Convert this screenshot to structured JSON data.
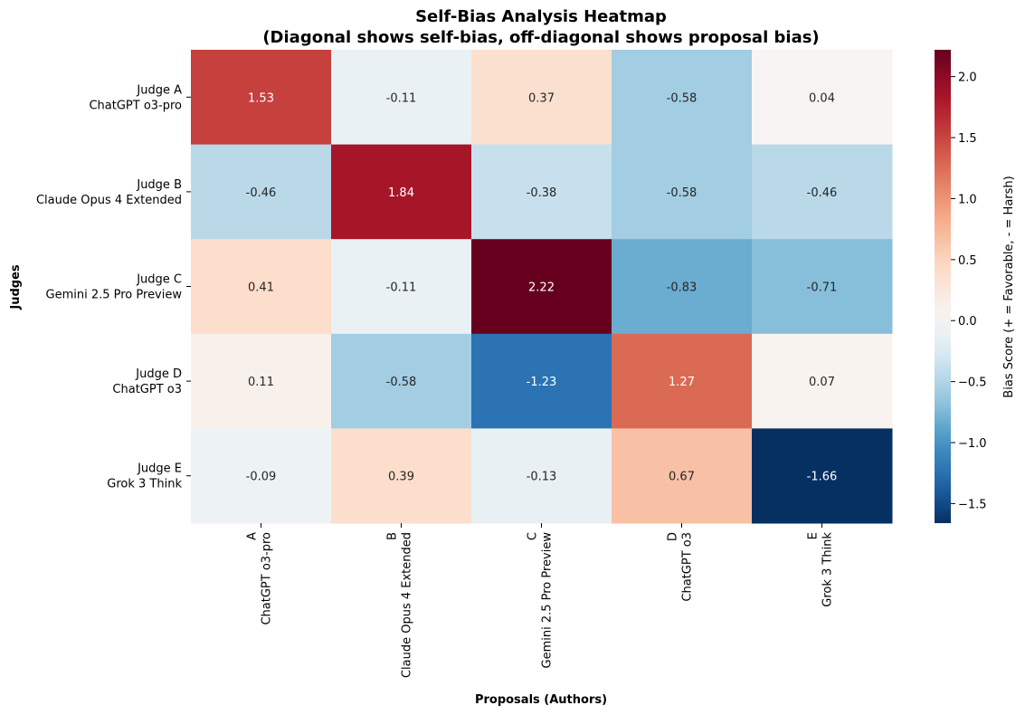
{
  "chart_data": {
    "type": "heatmap",
    "title": "Self-Bias Analysis Heatmap",
    "subtitle": "(Diagonal shows self-bias, off-diagonal shows proposal bias)",
    "xlabel": "Proposals (Authors)",
    "ylabel": "Judges",
    "colorbar_label": "Bias Score (+ = Favorable, - = Harsh)",
    "colormap": "RdBu_r",
    "vmin": -1.66,
    "vmax": 2.22,
    "colorbar_ticks": [
      "2.0",
      "1.5",
      "1.0",
      "0.5",
      "0.0",
      "−0.5",
      "−1.0",
      "−1.5"
    ],
    "colorbar_tick_values": [
      2.0,
      1.5,
      1.0,
      0.5,
      0.0,
      -0.5,
      -1.0,
      -1.5
    ],
    "rows": [
      [
        "Judge A",
        "ChatGPT o3-pro"
      ],
      [
        "Judge B",
        "Claude Opus 4 Extended"
      ],
      [
        "Judge C",
        "Gemini 2.5 Pro Preview"
      ],
      [
        "Judge D",
        "ChatGPT o3"
      ],
      [
        "Judge E",
        "Grok 3 Think"
      ]
    ],
    "columns": [
      [
        "A",
        "ChatGPT o3-pro"
      ],
      [
        "B",
        "Claude Opus 4 Extended"
      ],
      [
        "C",
        "Gemini 2.5 Pro Preview"
      ],
      [
        "D",
        "ChatGPT o3"
      ],
      [
        "E",
        "Grok 3 Think"
      ]
    ],
    "values": [
      [
        1.53,
        -0.11,
        0.37,
        -0.58,
        0.04
      ],
      [
        -0.46,
        1.84,
        -0.38,
        -0.58,
        -0.46
      ],
      [
        0.41,
        -0.11,
        2.22,
        -0.83,
        -0.71
      ],
      [
        0.11,
        -0.58,
        -1.23,
        1.27,
        0.07
      ],
      [
        -0.09,
        0.39,
        -0.13,
        0.67,
        -1.66
      ]
    ],
    "value_labels": [
      [
        "1.53",
        "-0.11",
        "0.37",
        "-0.58",
        "0.04"
      ],
      [
        "-0.46",
        "1.84",
        "-0.38",
        "-0.58",
        "-0.46"
      ],
      [
        "0.41",
        "-0.11",
        "2.22",
        "-0.83",
        "-0.71"
      ],
      [
        "0.11",
        "-0.58",
        "-1.23",
        "1.27",
        "0.07"
      ],
      [
        "-0.09",
        "0.39",
        "-0.13",
        "0.67",
        "-1.66"
      ]
    ]
  }
}
